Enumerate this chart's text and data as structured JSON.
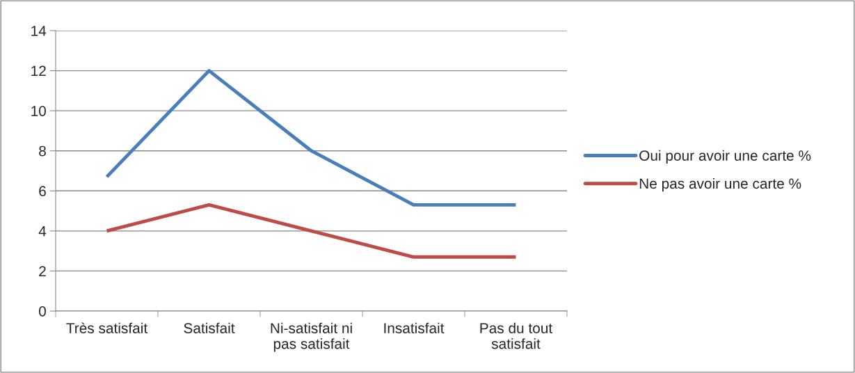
{
  "chart_data": {
    "type": "line",
    "categories": [
      "Très satisfait",
      "Satisfait",
      "Ni-satisfait ni\npas satisfait",
      "Insatisfait",
      "Pas du tout\nsatisfait"
    ],
    "series": [
      {
        "name": "Oui pour avoir une carte %",
        "color": "#4a7ebb",
        "values": [
          6.7,
          12,
          8,
          5.3,
          5.3
        ]
      },
      {
        "name": "Ne pas avoir une carte %",
        "color": "#be4b48",
        "values": [
          4,
          5.3,
          4,
          2.7,
          2.7
        ]
      }
    ],
    "ylim": [
      0,
      14
    ],
    "yticks": [
      0,
      2,
      4,
      6,
      8,
      10,
      12,
      14
    ],
    "grid": "y",
    "legend": "right",
    "marker": "none",
    "line_style": "solid"
  }
}
